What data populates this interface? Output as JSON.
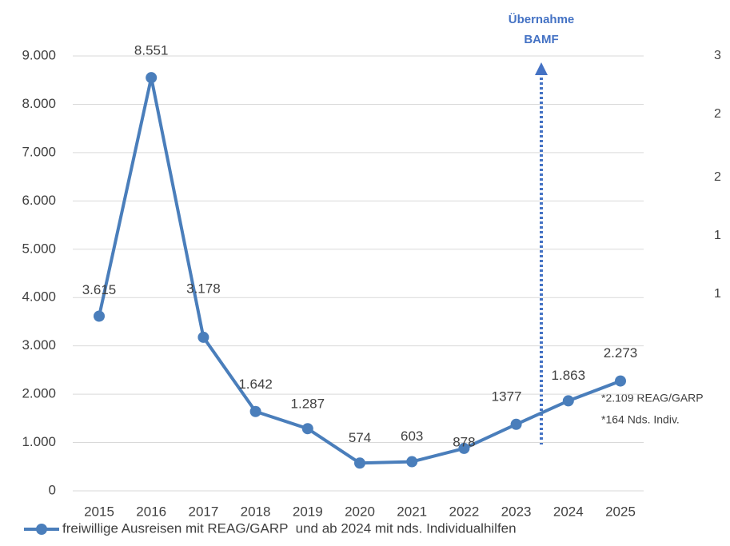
{
  "chart_data": {
    "type": "line",
    "categories": [
      "2015",
      "2016",
      "2017",
      "2018",
      "2019",
      "2020",
      "2021",
      "2022",
      "2023",
      "2024",
      "2025"
    ],
    "series": [
      {
        "name": "freiwillige Ausreisen mit REAG/GARP  und ab 2024 mit nds. Individualhilfen",
        "color": "#4a7ebb",
        "values": [
          3615,
          8551,
          3178,
          1642,
          1287,
          574,
          603,
          878,
          1377,
          1863,
          2273
        ],
        "value_labels": [
          "3.615",
          "8.551",
          "3.178",
          "1.642",
          "1.287",
          "574",
          "603",
          "878",
          "1377",
          "1.863",
          "2.273"
        ]
      }
    ],
    "ylim": [
      0,
      9000
    ],
    "yticks": [
      0,
      {
        "value": 1000,
        "label": "1.000"
      },
      {
        "value": 2000,
        "label": "2.000"
      },
      {
        "value": 3000,
        "label": "3.000"
      },
      {
        "value": 4000,
        "label": "4.000"
      },
      {
        "value": 5000,
        "label": "5.000"
      },
      {
        "value": 6000,
        "label": "6.000"
      },
      {
        "value": 7000,
        "label": "7.000"
      },
      {
        "value": 8000,
        "label": "8.000"
      },
      {
        "value": 9000,
        "label": "9.000"
      }
    ],
    "grid": true,
    "annotations": {
      "arrow": [
        "Übernahme",
        "BAMF"
      ],
      "note": [
        "*2.109 REAG/GARP",
        "*164 Nds. Indiv."
      ],
      "right_axis_fragments": [
        "3",
        "2",
        "2",
        "1",
        "1"
      ]
    }
  }
}
